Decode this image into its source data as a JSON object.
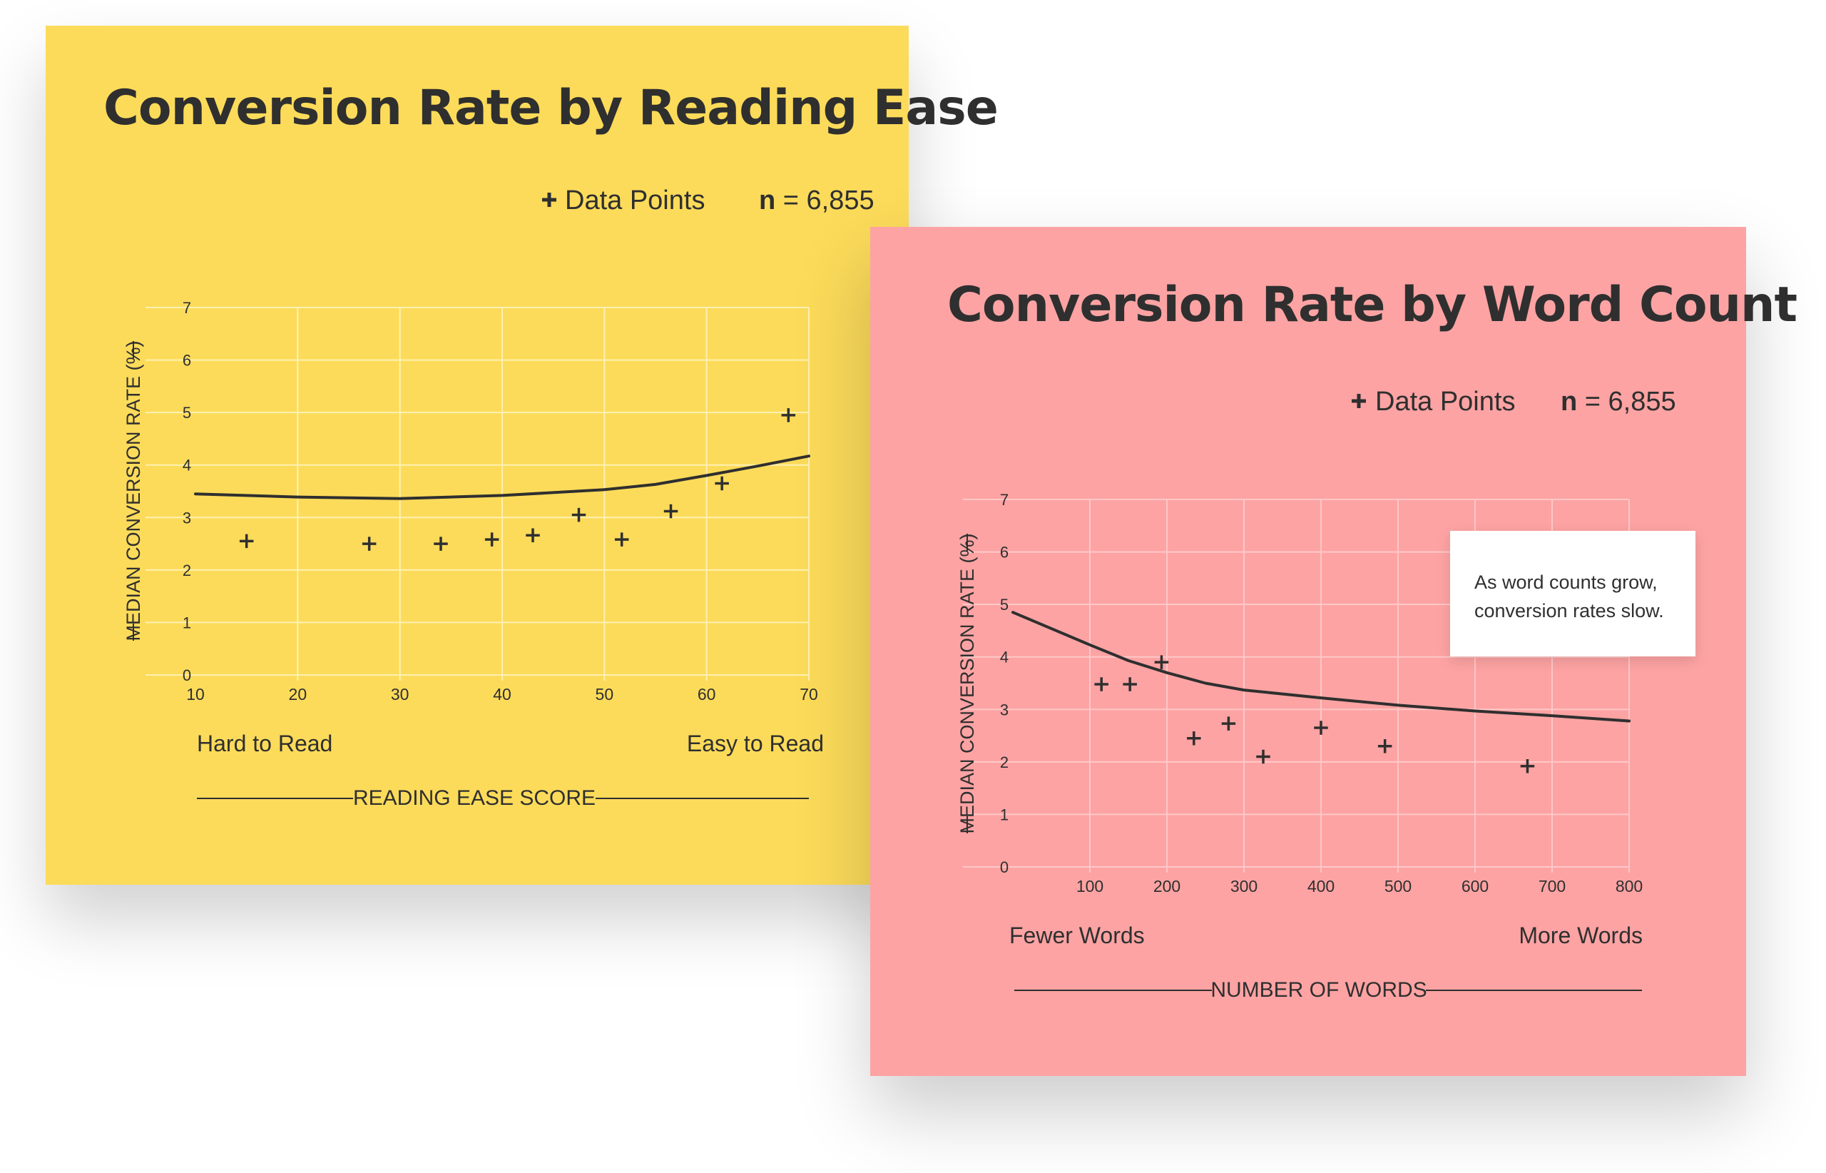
{
  "chart_data": [
    {
      "type": "scatter",
      "title": "Conversion Rate by Reading Ease",
      "legend": {
        "marker_label": "Data Points",
        "n_bold": "n",
        "n_rest": "= 6,855",
        "position": "top-right"
      },
      "xlabel": "READING EASE SCORE",
      "ylabel": "MEDIAN CONVERSION RATE (%)",
      "x_left_label": "Hard to Read",
      "x_right_label": "Easy to Read",
      "xlim": [
        10,
        70
      ],
      "ylim": [
        0,
        7
      ],
      "xticks": [
        10,
        20,
        30,
        40,
        50,
        60,
        70
      ],
      "yticks": [
        0,
        1,
        2,
        3,
        4,
        5,
        6,
        7
      ],
      "grid": true,
      "colors": {
        "background": "#FCDB5A",
        "grid": "#FFF1B3",
        "ink": "#2f2f2f"
      },
      "points": [
        {
          "x": 15,
          "y": 2.55
        },
        {
          "x": 27,
          "y": 2.5
        },
        {
          "x": 34,
          "y": 2.5
        },
        {
          "x": 39,
          "y": 2.58
        },
        {
          "x": 43,
          "y": 2.66
        },
        {
          "x": 47.5,
          "y": 3.05
        },
        {
          "x": 51.7,
          "y": 2.58
        },
        {
          "x": 56.5,
          "y": 3.12
        },
        {
          "x": 61.5,
          "y": 3.65
        },
        {
          "x": 68,
          "y": 4.95
        }
      ],
      "trend": [
        {
          "x": 10,
          "y": 3.45
        },
        {
          "x": 20,
          "y": 3.39
        },
        {
          "x": 30,
          "y": 3.36
        },
        {
          "x": 40,
          "y": 3.42
        },
        {
          "x": 50,
          "y": 3.53
        },
        {
          "x": 55,
          "y": 3.63
        },
        {
          "x": 60,
          "y": 3.8
        },
        {
          "x": 65,
          "y": 3.98
        },
        {
          "x": 70,
          "y": 4.17
        }
      ]
    },
    {
      "type": "scatter",
      "title": "Conversion Rate by Word Count",
      "legend": {
        "marker_label": "Data Points",
        "n_bold": "n",
        "n_rest": "= 6,855",
        "position": "top-right"
      },
      "xlabel": "NUMBER OF WORDS",
      "ylabel": "MEDIAN CONVERSION RATE (%)",
      "x_left_label": "Fewer Words",
      "x_right_label": "More  Words",
      "xlim": [
        0,
        800
      ],
      "ylim": [
        0,
        7
      ],
      "xticks": [
        100,
        200,
        300,
        400,
        500,
        600,
        700,
        800
      ],
      "yticks": [
        0,
        1,
        2,
        3,
        4,
        5,
        6,
        7
      ],
      "grid": true,
      "annotation": [
        "As word counts grow,",
        "conversion rates slow."
      ],
      "colors": {
        "background": "#FDA3A3",
        "grid": "#FFC8C8",
        "ink": "#2f2f2f"
      },
      "points": [
        {
          "x": 115,
          "y": 3.48
        },
        {
          "x": 152,
          "y": 3.48
        },
        {
          "x": 193,
          "y": 3.9
        },
        {
          "x": 235,
          "y": 2.45
        },
        {
          "x": 280,
          "y": 2.73
        },
        {
          "x": 325,
          "y": 2.1
        },
        {
          "x": 400,
          "y": 2.65
        },
        {
          "x": 483,
          "y": 2.3
        },
        {
          "x": 668,
          "y": 1.92
        }
      ],
      "trend": [
        {
          "x": 0,
          "y": 4.85
        },
        {
          "x": 100,
          "y": 4.23
        },
        {
          "x": 150,
          "y": 3.93
        },
        {
          "x": 200,
          "y": 3.7
        },
        {
          "x": 250,
          "y": 3.5
        },
        {
          "x": 300,
          "y": 3.37
        },
        {
          "x": 400,
          "y": 3.22
        },
        {
          "x": 500,
          "y": 3.08
        },
        {
          "x": 600,
          "y": 2.97
        },
        {
          "x": 700,
          "y": 2.88
        },
        {
          "x": 800,
          "y": 2.78
        }
      ]
    }
  ]
}
